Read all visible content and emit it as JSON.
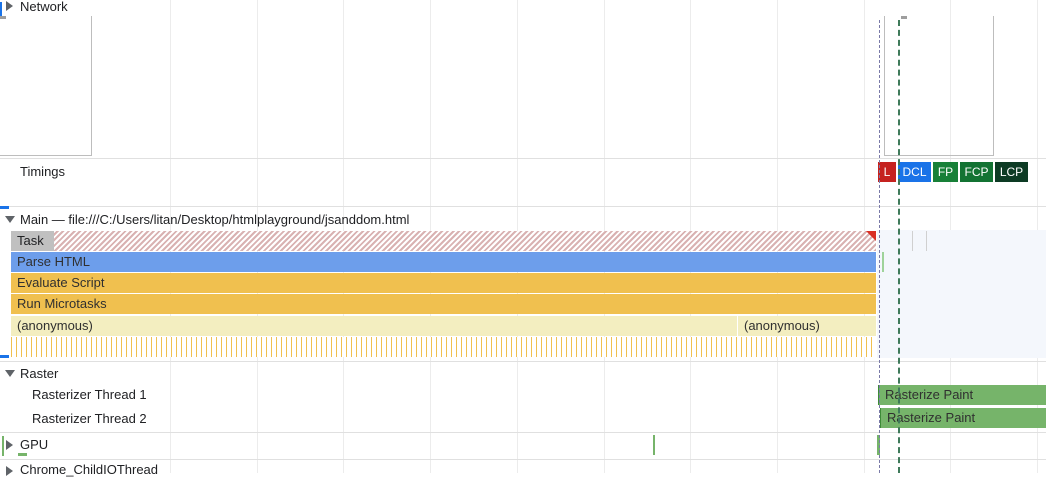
{
  "tracks": {
    "network": {
      "label": "Network"
    },
    "timings": {
      "label": "Timings"
    },
    "main": {
      "label": "Main — file:///C:/Users/litan/Desktop/htmlplayground/jsanddom.html"
    },
    "raster": {
      "label": "Raster"
    },
    "rasterizer_thread_1": {
      "label": "Rasterizer Thread 1"
    },
    "rasterizer_thread_2": {
      "label": "Rasterizer Thread 2"
    },
    "gpu": {
      "label": "GPU"
    },
    "child_io": {
      "label": "Chrome_ChildIOThread"
    }
  },
  "timing_markers": [
    {
      "label": "L",
      "color": "#c5221f"
    },
    {
      "label": "DCL",
      "color": "#1a73e8"
    },
    {
      "label": "FP",
      "color": "#188038"
    },
    {
      "label": "FCP",
      "color": "#137333"
    },
    {
      "label": "LCP",
      "color": "#0d3b24"
    }
  ],
  "flame": {
    "task": "Task",
    "parse_html": "Parse HTML",
    "evaluate_script": "Evaluate Script",
    "run_microtasks": "Run Microtasks",
    "anonymous_1": "(anonymous)",
    "anonymous_2": "(anonymous)"
  },
  "raster_events": {
    "thread1": "Rasterize Paint",
    "thread2": "Rasterize Paint"
  },
  "colors": {
    "task_gray": "#c0c0c0",
    "parse_html_blue": "#6d9eeb",
    "script_yellow": "#f0c04f",
    "anonymous_yellow": "#f3eec0",
    "raster_green": "#76b46a",
    "long_task_red": "#d93025"
  }
}
